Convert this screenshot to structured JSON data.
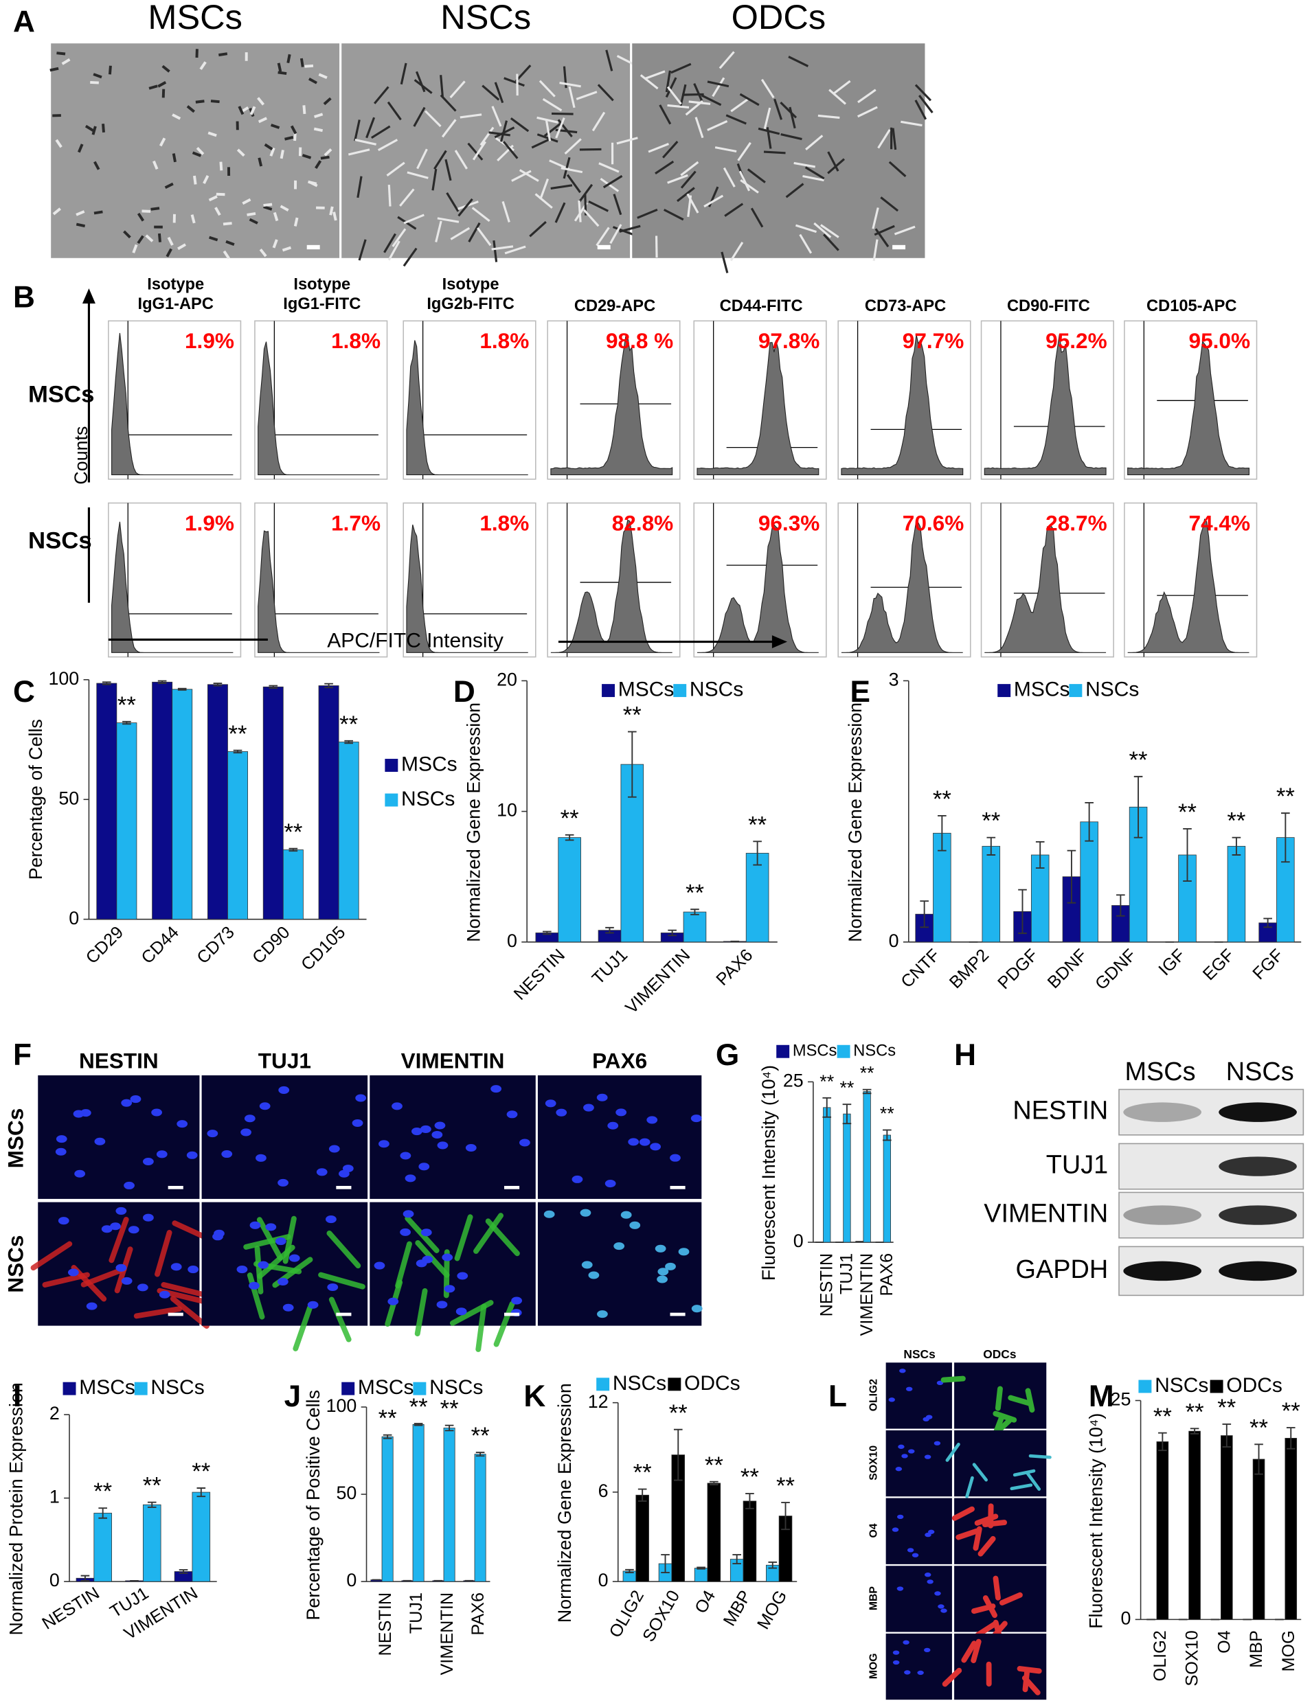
{
  "panel_labels": [
    "A",
    "B",
    "C",
    "D",
    "E",
    "F",
    "G",
    "H",
    "I",
    "J",
    "K",
    "L",
    "M"
  ],
  "panel_a": {
    "titles": [
      "MSCs",
      "NSCs",
      "ODCs"
    ]
  },
  "panel_b": {
    "headers": [
      [
        "Isotype",
        "IgG1-APC"
      ],
      [
        "Isotype",
        "IgG1-FITC"
      ],
      [
        "Isotype",
        "IgG2b-FITC"
      ],
      [
        "CD29-APC"
      ],
      [
        "CD44-FITC"
      ],
      [
        "CD73-APC"
      ],
      [
        "CD90-FITC"
      ],
      [
        "CD105-APC"
      ]
    ],
    "rows": [
      "MSCs",
      "NSCs"
    ],
    "y_label": "Counts",
    "x_label": "APC/FITC Intensity",
    "percentages": [
      [
        "1.9%",
        "1.8%",
        "1.8%",
        "98.8 %",
        "97.8%",
        "97.7%",
        "95.2%",
        "95.0%"
      ],
      [
        "1.9%",
        "1.7%",
        "1.8%",
        "82.8%",
        "96.3%",
        "70.6%",
        "28.7%",
        "74.4%"
      ]
    ]
  },
  "panel_f": {
    "headers": [
      "NESTIN",
      "TUJ1",
      "VIMENTIN",
      "PAX6"
    ],
    "rows": [
      "MSCs",
      "NSCs"
    ]
  },
  "panel_h": {
    "headers": [
      "MSCs",
      "NSCs"
    ],
    "rows": [
      "NESTIN",
      "TUJ1",
      "VIMENTIN",
      "GAPDH"
    ]
  },
  "panel_l": {
    "headers": [
      "NSCs",
      "ODCs"
    ],
    "rows": [
      "OLIG2",
      "SOX10",
      "O4",
      "MBP",
      "MOG"
    ]
  },
  "chart_data": [
    {
      "type": "bar",
      "y_label": "Percentage of Cells",
      "ylim": [
        0,
        100
      ],
      "yticks": [
        0,
        50,
        100
      ],
      "legend": "right",
      "categories": [
        "CD29",
        "CD44",
        "CD73",
        "CD90",
        "CD105"
      ],
      "series": [
        {
          "name": "MSCs",
          "color": "#0b0b8a",
          "values": [
            98.5,
            99,
            98,
            97,
            97.5
          ],
          "errors": [
            0.5,
            0.5,
            0.5,
            0.5,
            0.8
          ]
        },
        {
          "name": "NSCs",
          "color": "#1fb4ee",
          "values": [
            82,
            96,
            70,
            29,
            74
          ],
          "errors": [
            0.5,
            0.3,
            0.5,
            0.5,
            0.5
          ],
          "significance": [
            "**",
            null,
            "**",
            "**",
            "**"
          ]
        }
      ]
    },
    {
      "type": "bar",
      "y_label": "Normalized Gene Expression",
      "ylim": [
        0,
        20
      ],
      "yticks": [
        0,
        10,
        20
      ],
      "legend": "top",
      "categories": [
        "NESTIN",
        "TUJ1",
        "VIMENTIN",
        "PAX6"
      ],
      "series": [
        {
          "name": "MSCs",
          "color": "#0b0b8a",
          "values": [
            0.7,
            0.9,
            0.7,
            0.05
          ],
          "errors": [
            0.1,
            0.2,
            0.2,
            0
          ]
        },
        {
          "name": "NSCs",
          "color": "#1fb4ee",
          "values": [
            8,
            13.6,
            2.3,
            6.8
          ],
          "errors": [
            0.2,
            2.5,
            0.2,
            0.9
          ],
          "significance": [
            "**",
            "**",
            "**",
            "**"
          ]
        }
      ]
    },
    {
      "type": "bar",
      "y_label": "Normalized Gene Expression",
      "ylim": [
        0,
        3
      ],
      "yticks": [
        0,
        3
      ],
      "legend": "top",
      "categories": [
        "CNTF",
        "BMP2",
        "PDGF",
        "BDNF",
        "GDNF",
        "IGF",
        "EGF",
        "FGF"
      ],
      "series": [
        {
          "name": "MSCs",
          "color": "#0b0b8a",
          "values": [
            0.32,
            0,
            0.35,
            0.75,
            0.42,
            0,
            0,
            0.22
          ],
          "errors": [
            0.15,
            0,
            0.25,
            0.3,
            0.12,
            0,
            0,
            0.05
          ]
        },
        {
          "name": "NSCs",
          "color": "#1fb4ee",
          "values": [
            1.25,
            1.1,
            1.0,
            1.38,
            1.55,
            1.0,
            1.1,
            1.2
          ],
          "errors": [
            0.2,
            0.1,
            0.15,
            0.22,
            0.35,
            0.3,
            0.1,
            0.28
          ],
          "significance": [
            "**",
            "**",
            null,
            null,
            "**",
            "**",
            "**",
            "**"
          ]
        }
      ]
    },
    {
      "type": "bar",
      "y_label": "Fluorescent Intensity (10⁴)",
      "ylim": [
        0,
        25
      ],
      "yticks": [
        0,
        25
      ],
      "legend": "top",
      "categories": [
        "NESTIN",
        "TUJ1",
        "VIMENTIN",
        "PAX6"
      ],
      "series": [
        {
          "name": "MSCs",
          "color": "#0b0b8a",
          "values": [
            0,
            0,
            0.1,
            0
          ],
          "errors": [
            0,
            0,
            0,
            0
          ]
        },
        {
          "name": "NSCs",
          "color": "#1fb4ee",
          "values": [
            21,
            20,
            23.5,
            16.7
          ],
          "errors": [
            1.5,
            1.5,
            0.3,
            0.8
          ],
          "significance": [
            "**",
            "**",
            "**",
            "**"
          ]
        }
      ]
    },
    {
      "type": "bar",
      "y_label": "Normalized Protein Expression",
      "ylim": [
        0,
        2
      ],
      "yticks": [
        0,
        1,
        2
      ],
      "legend": "top",
      "categories": [
        "NESTIN",
        "TUJ1",
        "VIMENTIN"
      ],
      "series": [
        {
          "name": "MSCs",
          "color": "#0b0b8a",
          "values": [
            0.04,
            0.01,
            0.12
          ],
          "errors": [
            0.03,
            0,
            0.02
          ]
        },
        {
          "name": "NSCs",
          "color": "#1fb4ee",
          "values": [
            0.82,
            0.92,
            1.07
          ],
          "errors": [
            0.06,
            0.03,
            0.05
          ],
          "significance": [
            "**",
            "**",
            "**"
          ]
        }
      ]
    },
    {
      "type": "bar",
      "y_label": "Percentage of Positive Cells",
      "ylim": [
        0,
        100
      ],
      "yticks": [
        0,
        50,
        100
      ],
      "legend": "top",
      "categories": [
        "NESTIN",
        "TUJ1",
        "VIMENTIN",
        "PAX6"
      ],
      "series": [
        {
          "name": "MSCs",
          "color": "#0b0b8a",
          "values": [
            1,
            0.5,
            0.5,
            0.5
          ],
          "errors": [
            0,
            0,
            0,
            0
          ]
        },
        {
          "name": "NSCs",
          "color": "#1fb4ee",
          "values": [
            83,
            90,
            88,
            73
          ],
          "errors": [
            1,
            0.5,
            1.5,
            1
          ],
          "significance": [
            "**",
            "**",
            "**",
            "**"
          ]
        }
      ]
    },
    {
      "type": "bar",
      "y_label": "Normalized Gene Expression",
      "ylim": [
        0,
        12
      ],
      "yticks": [
        0,
        6,
        12
      ],
      "legend": "top",
      "categories": [
        "OLIG2",
        "SOX10",
        "O4",
        "MBP",
        "MOG"
      ],
      "series": [
        {
          "name": "NSCs",
          "color": "#1fb4ee",
          "values": [
            0.7,
            1.2,
            0.9,
            1.5,
            1.1
          ],
          "errors": [
            0.1,
            0.6,
            0.05,
            0.3,
            0.2
          ]
        },
        {
          "name": "ODCs",
          "color": "#000000",
          "values": [
            5.8,
            8.5,
            6.6,
            5.4,
            4.4
          ],
          "errors": [
            0.4,
            1.7,
            0.1,
            0.5,
            0.9
          ],
          "significance": [
            "**",
            "**",
            "**",
            "**",
            "**"
          ]
        }
      ]
    },
    {
      "type": "bar",
      "y_label": "Fluorescent Intensity (10⁴)",
      "ylim": [
        0,
        25
      ],
      "yticks": [
        0,
        25
      ],
      "legend": "top",
      "categories": [
        "OLIG2",
        "SOX10",
        "O4",
        "MBP",
        "MOG"
      ],
      "series": [
        {
          "name": "NSCs",
          "color": "#1fb4ee",
          "values": [
            0,
            0,
            0,
            0,
            0
          ],
          "errors": [
            0,
            0,
            0,
            0,
            0
          ]
        },
        {
          "name": "ODCs",
          "color": "#000000",
          "values": [
            20.3,
            21.5,
            21,
            18.3,
            20.7
          ],
          "errors": [
            1,
            0.3,
            1.3,
            1.7,
            1.2
          ],
          "significance": [
            "**",
            "**",
            "**",
            "**",
            "**"
          ]
        }
      ]
    }
  ]
}
